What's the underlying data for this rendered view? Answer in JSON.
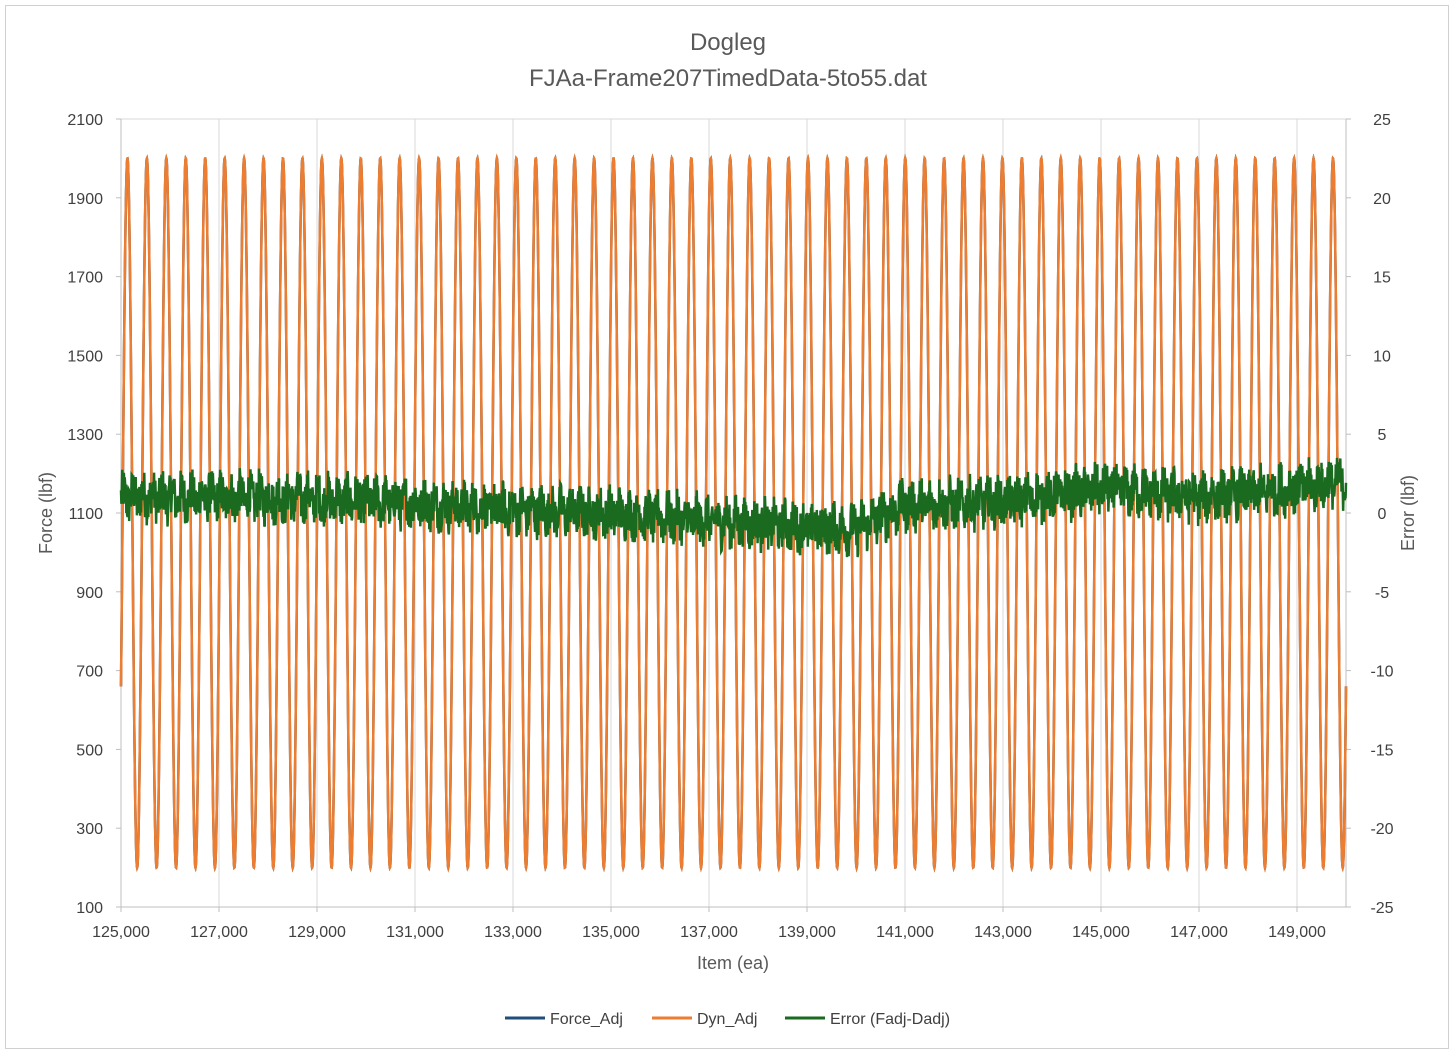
{
  "chart_data": {
    "type": "line",
    "title": "Dogleg",
    "subtitle": "FJAa-Frame207TimedData-5to55.dat",
    "xlabel": "Item (ea)",
    "ylabel": "Force (lbf)",
    "y2label": "Error (lbf)",
    "xlim": [
      125000,
      150000
    ],
    "ylim": [
      100,
      2100
    ],
    "y2lim": [
      -25,
      25
    ],
    "x_ticks": [
      "125,000",
      "127,000",
      "129,000",
      "131,000",
      "133,000",
      "135,000",
      "137,000",
      "139,000",
      "141,000",
      "143,000",
      "145,000",
      "147,000",
      "149,000"
    ],
    "x_tick_values": [
      125000,
      127000,
      129000,
      131000,
      133000,
      135000,
      137000,
      139000,
      141000,
      143000,
      145000,
      147000,
      149000
    ],
    "y_ticks": [
      "2100",
      "1900",
      "1700",
      "1500",
      "1300",
      "1100",
      "900",
      "700",
      "500",
      "300",
      "100"
    ],
    "y_tick_values": [
      2100,
      1900,
      1700,
      1500,
      1300,
      1100,
      900,
      700,
      500,
      300,
      100
    ],
    "y2_ticks": [
      "25",
      "20",
      "15",
      "10",
      "5",
      "0",
      "-5",
      "-10",
      "-15",
      "-20",
      "-25"
    ],
    "y2_tick_values": [
      25,
      20,
      15,
      10,
      5,
      0,
      -5,
      -10,
      -15,
      -20,
      -25
    ],
    "grid": "vertical",
    "legend_position": "bottom",
    "series": [
      {
        "name": "Force_Adj",
        "color": "#1f4e79",
        "axis": "left",
        "description": "sinusoidal",
        "min": 200,
        "max": 2000,
        "cycles": 63,
        "start_value": 660
      },
      {
        "name": "Dyn_Adj",
        "color": "#ed7d31",
        "axis": "left",
        "min": 200,
        "max": 2000,
        "cycles": 63,
        "start_value": 660
      },
      {
        "name": "Error (Fadj-Dadj)",
        "color": "#1a6b1f",
        "axis": "right",
        "trend_x": [
          125000,
          127000,
          129000,
          131000,
          133000,
          135000,
          137000,
          139000,
          140000,
          141000,
          143000,
          145000,
          147000,
          149000,
          150000
        ],
        "trend_y": [
          1.0,
          1.0,
          0.9,
          0.6,
          0.2,
          0.0,
          -0.5,
          -0.9,
          -1.0,
          0.5,
          0.7,
          1.5,
          1.0,
          1.6,
          2.0
        ],
        "noise_amplitude": 1.4
      }
    ]
  }
}
